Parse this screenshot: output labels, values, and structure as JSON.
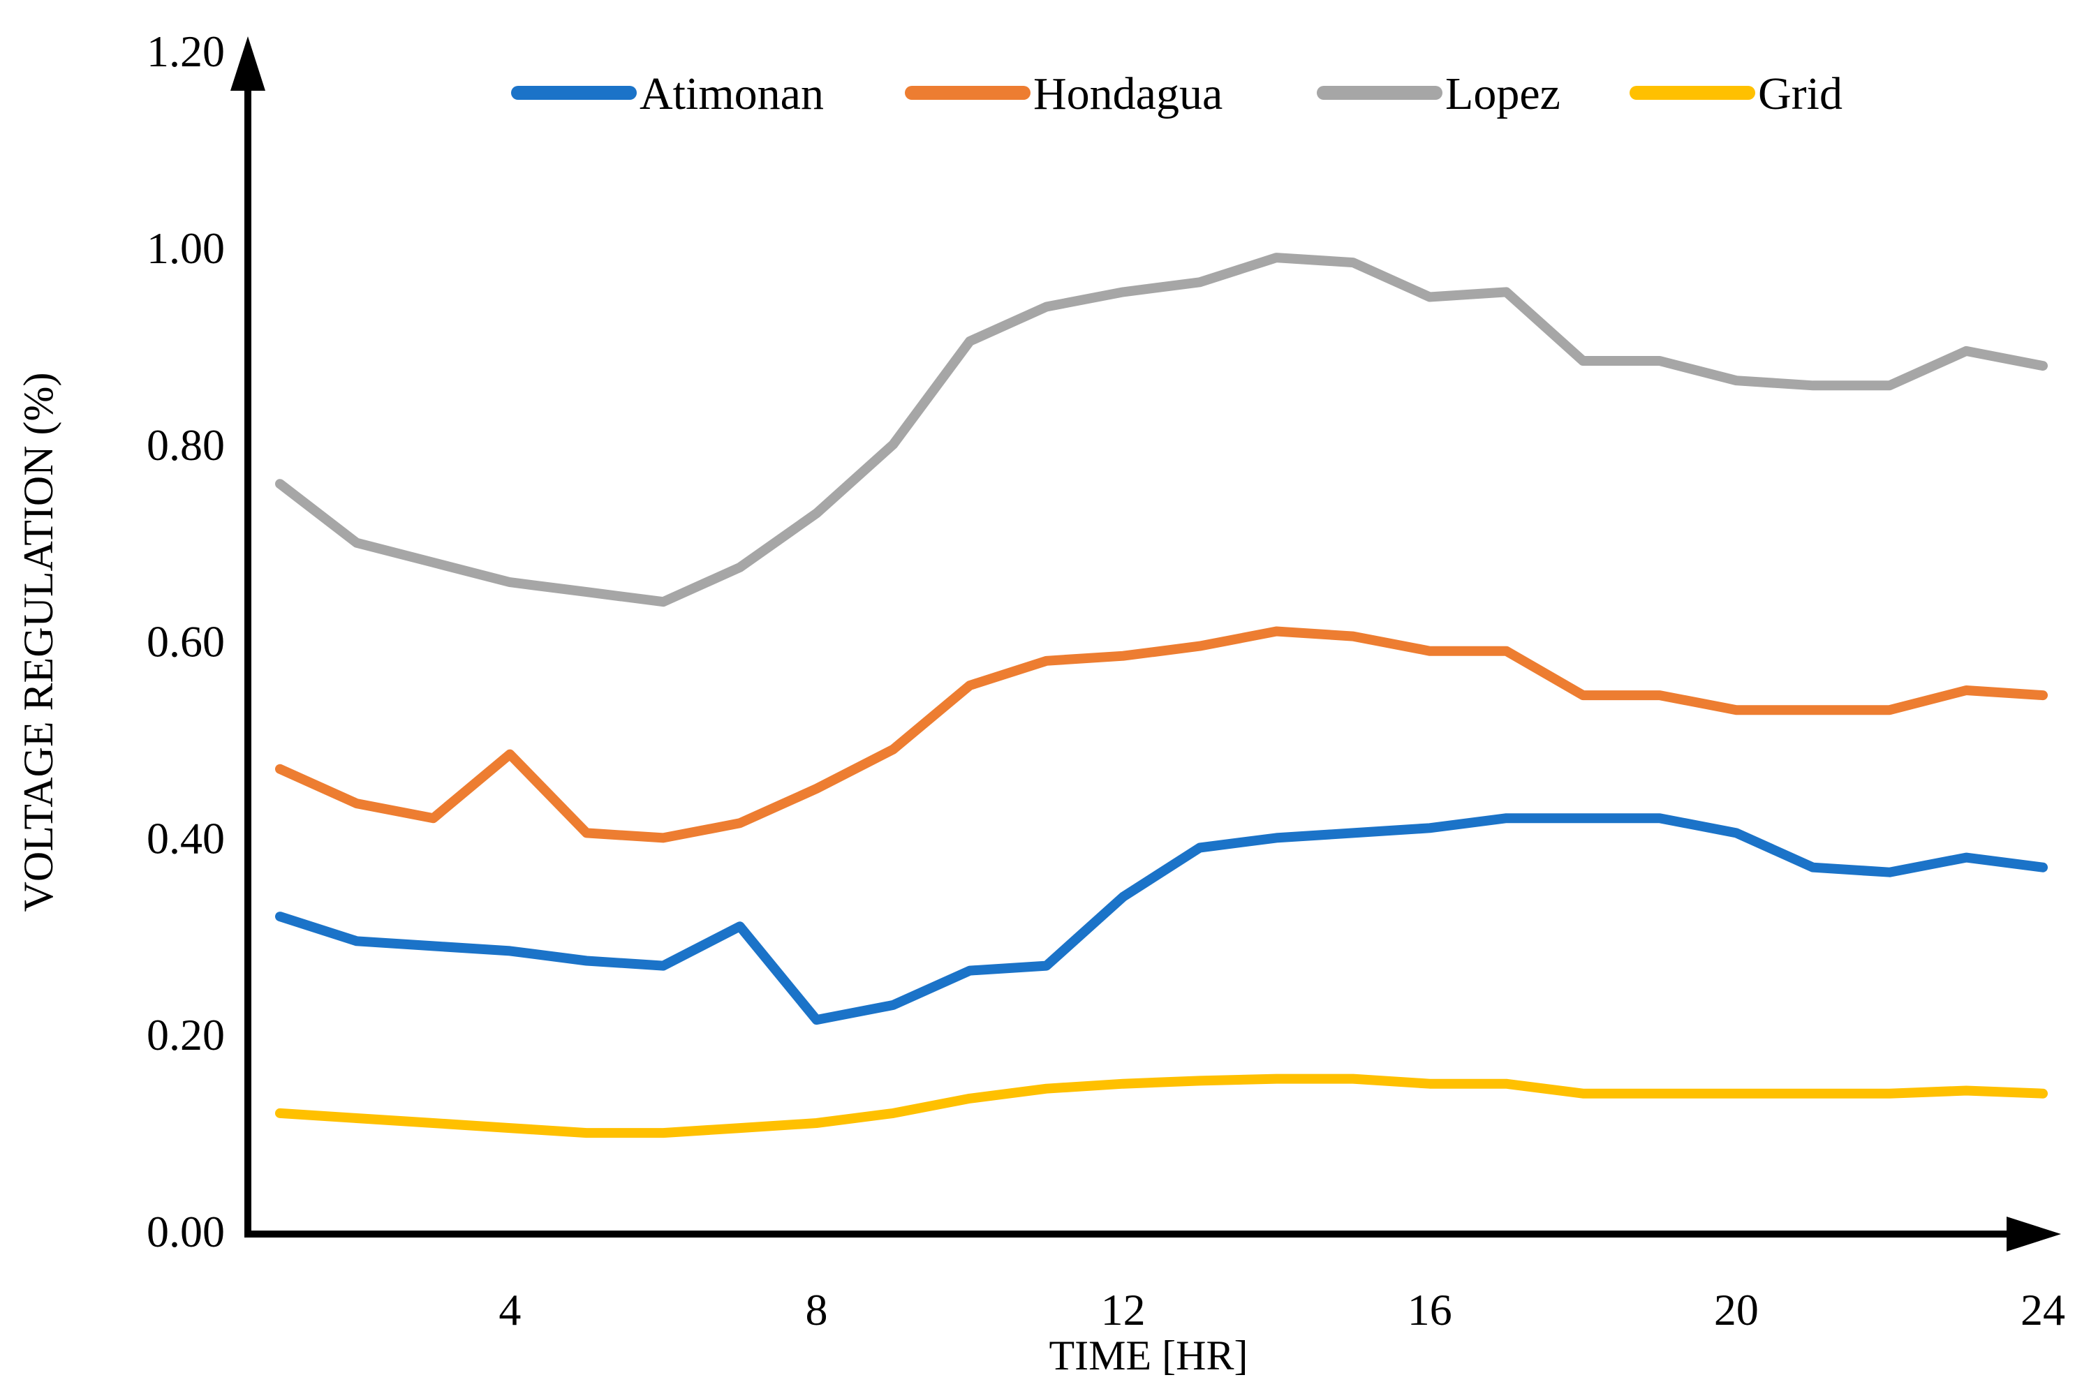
{
  "chart_data": {
    "type": "line",
    "title": "",
    "xlabel": "TIME [HR]",
    "ylabel": "VOLTAGE REGULATION (%)",
    "x": [
      1,
      2,
      3,
      4,
      5,
      6,
      7,
      8,
      9,
      10,
      11,
      12,
      13,
      14,
      15,
      16,
      17,
      18,
      19,
      20,
      21,
      22,
      23,
      24
    ],
    "xlim": [
      1,
      24
    ],
    "ylim": [
      0.0,
      1.2
    ],
    "xticks": [
      4,
      8,
      12,
      16,
      20,
      24
    ],
    "xtick_labels": [
      "4",
      "8",
      "12",
      "16",
      "20",
      "24"
    ],
    "yticks": [
      0.0,
      0.2,
      0.4,
      0.6,
      0.8,
      1.0,
      1.2
    ],
    "ytick_labels": [
      "0.00",
      "0.20",
      "0.40",
      "0.60",
      "0.80",
      "1.00",
      "1.20"
    ],
    "grid": "off",
    "legend_position": "top",
    "axis_color": "#000000",
    "background_color": "#ffffff",
    "series": [
      {
        "name": "Atimonan",
        "color": "#1B73C8",
        "values": [
          0.32,
          0.295,
          0.29,
          0.285,
          0.275,
          0.27,
          0.31,
          0.215,
          0.23,
          0.265,
          0.27,
          0.34,
          0.39,
          0.4,
          0.405,
          0.41,
          0.42,
          0.42,
          0.42,
          0.405,
          0.37,
          0.365,
          0.38,
          0.37
        ]
      },
      {
        "name": "Hondagua",
        "color": "#ED7D31",
        "values": [
          0.47,
          0.435,
          0.42,
          0.485,
          0.405,
          0.4,
          0.415,
          0.45,
          0.49,
          0.555,
          0.58,
          0.585,
          0.595,
          0.61,
          0.605,
          0.59,
          0.59,
          0.545,
          0.545,
          0.53,
          0.53,
          0.53,
          0.55,
          0.545
        ]
      },
      {
        "name": "Lopez",
        "color": "#A6A6A6",
        "values": [
          0.76,
          0.7,
          0.68,
          0.66,
          0.65,
          0.64,
          0.675,
          0.73,
          0.8,
          0.905,
          0.94,
          0.955,
          0.965,
          0.99,
          0.985,
          0.95,
          0.955,
          0.885,
          0.885,
          0.865,
          0.86,
          0.86,
          0.895,
          0.88
        ]
      },
      {
        "name": "Grid",
        "color": "#FFC000",
        "values": [
          0.12,
          0.115,
          0.11,
          0.105,
          0.1,
          0.1,
          0.105,
          0.11,
          0.12,
          0.135,
          0.145,
          0.15,
          0.153,
          0.155,
          0.155,
          0.15,
          0.15,
          0.14,
          0.14,
          0.14,
          0.14,
          0.14,
          0.143,
          0.14
        ]
      }
    ]
  }
}
